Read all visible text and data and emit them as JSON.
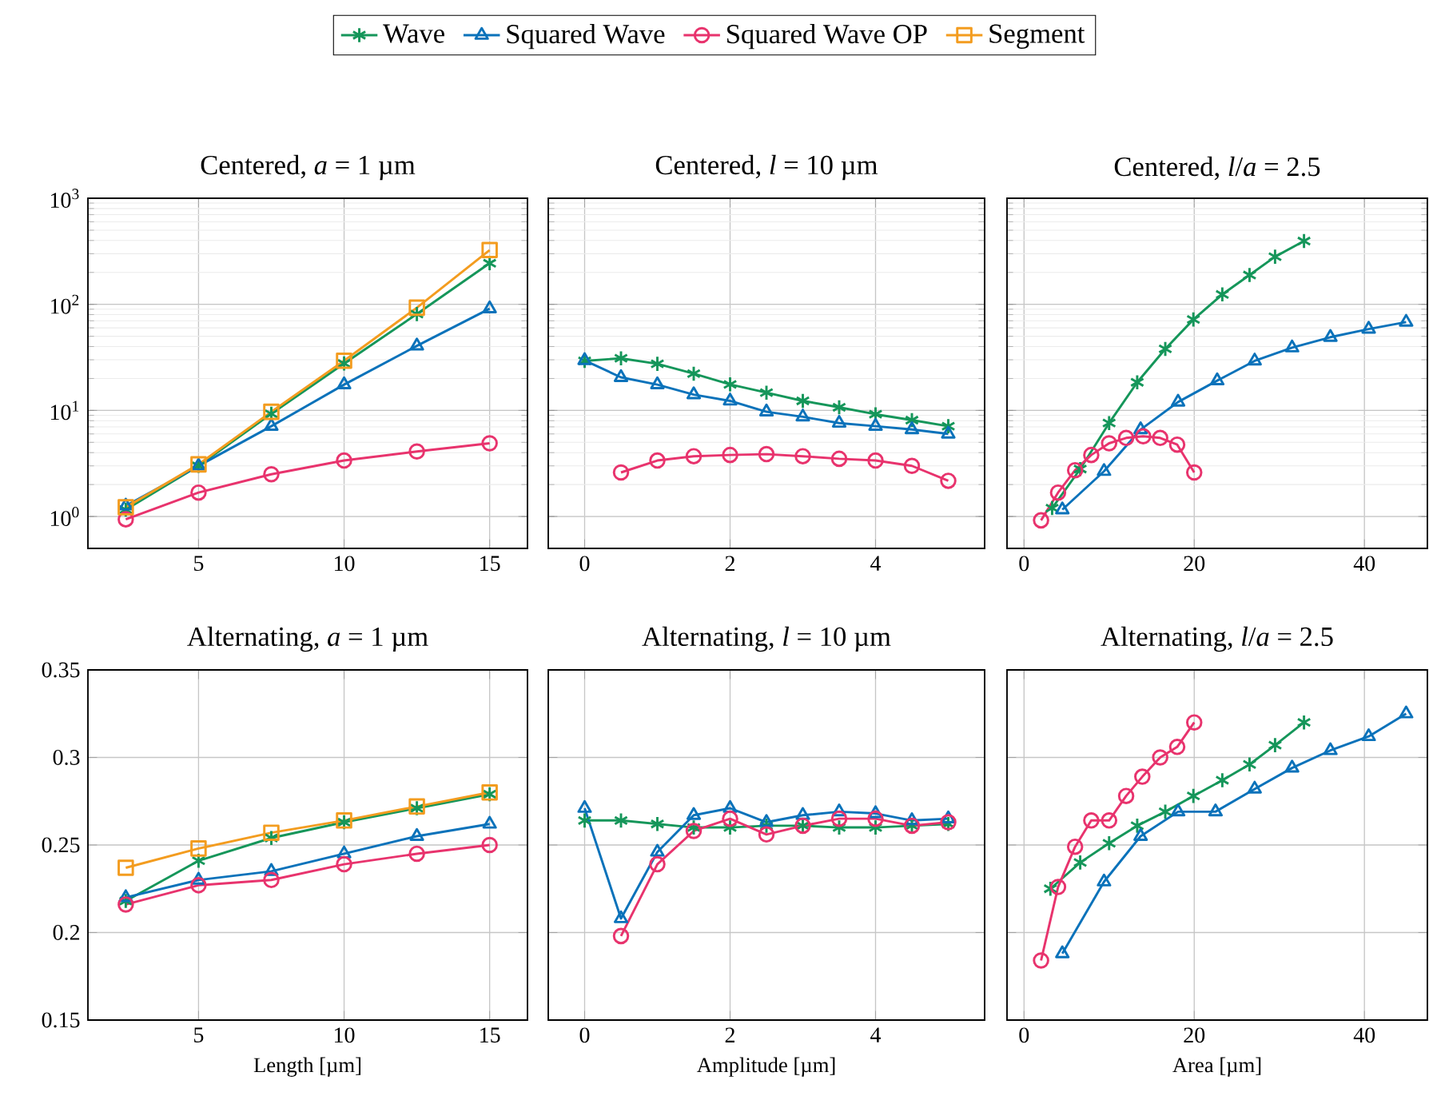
{
  "chart_data": [
    {
      "type": "line",
      "title": "Centered, *a* = 1 µm",
      "log": "y",
      "grid": true,
      "legend": "top",
      "xlim": [
        1.2,
        16.3
      ],
      "ylim": [
        0.5,
        1000
      ],
      "xticks": [
        5,
        10,
        15
      ],
      "yticks": [
        {
          "value": 1,
          "label": "10$^{0}$"
        },
        {
          "value": 10,
          "label": "10$^{1}$"
        },
        {
          "value": 100,
          "label": "10$^{2}$"
        },
        {
          "value": 1000,
          "label": "10$^{3}$"
        }
      ],
      "series": [
        {
          "name": "Wave",
          "color": "#15965a",
          "marker": "cross",
          "x": [
            2.5,
            5,
            7.5,
            10,
            12.5,
            15
          ],
          "values": [
            1.16,
            3.0,
            9.3,
            27.7,
            81,
            244
          ]
        },
        {
          "name": "Squared Wave",
          "color": "#0a72ba",
          "marker": "triangle",
          "x": [
            2.5,
            5,
            7.5,
            10,
            12.5,
            15
          ],
          "values": [
            1.26,
            3.0,
            7.1,
            17.5,
            40.6,
            91
          ]
        },
        {
          "name": "Squared Wave OP",
          "color": "#e8336d",
          "marker": "circle",
          "x": [
            2.5,
            5,
            7.5,
            10,
            12.5,
            15
          ],
          "values": [
            0.94,
            1.68,
            2.5,
            3.37,
            4.1,
            4.9
          ]
        },
        {
          "name": "Segment",
          "color": "#f39c1f",
          "marker": "square",
          "x": [
            2.5,
            5,
            7.5,
            10,
            12.5,
            15
          ],
          "values": [
            1.22,
            3.1,
            9.7,
            29.4,
            93,
            325
          ]
        }
      ]
    },
    {
      "type": "line",
      "title": "Centered, *l* = 10 µm",
      "log": "y",
      "grid": true,
      "tick_labels": "x",
      "xlim": [
        -0.5,
        5.5
      ],
      "ylim": [
        0.5,
        1000
      ],
      "xticks": [
        0,
        2,
        4
      ],
      "yticks": [
        {
          "value": 1,
          "label": null
        },
        {
          "value": 10,
          "label": null
        },
        {
          "value": 100,
          "label": null
        },
        {
          "value": 1000,
          "label": null
        }
      ],
      "series": [
        {
          "color": "#15965a",
          "marker": "cross",
          "x": [
            0,
            0.5,
            1,
            1.5,
            2,
            2.5,
            3,
            3.5,
            4,
            4.5,
            5
          ],
          "values": [
            29.3,
            31,
            27.5,
            22.2,
            17.6,
            14.7,
            12.3,
            10.7,
            9.2,
            8.1,
            7.1
          ]
        },
        {
          "color": "#0a72ba",
          "marker": "triangle",
          "x": [
            0,
            0.5,
            1,
            1.5,
            2,
            2.5,
            3,
            3.5,
            4,
            4.5,
            5
          ],
          "values": [
            29.6,
            20.5,
            17.5,
            14.1,
            12.3,
            9.7,
            8.7,
            7.6,
            7.1,
            6.6,
            6.0
          ]
        },
        {
          "color": "#e8336d",
          "marker": "circle",
          "x": [
            0.5,
            1,
            1.5,
            2,
            2.5,
            3,
            3.5,
            4,
            4.5,
            5
          ],
          "values": [
            2.6,
            3.37,
            3.7,
            3.8,
            3.87,
            3.7,
            3.5,
            3.37,
            3.0,
            2.17
          ]
        }
      ]
    },
    {
      "type": "line",
      "title": "Centered, *l*/*a* = 2.5",
      "log": "y",
      "grid": true,
      "tick_labels": "x",
      "xlim": [
        -2,
        47.4
      ],
      "ylim": [
        0.5,
        1000
      ],
      "xticks": [
        0,
        20,
        40
      ],
      "yticks": [
        {
          "value": 1,
          "label": null
        },
        {
          "value": 10,
          "label": null
        },
        {
          "value": 100,
          "label": null
        },
        {
          "value": 1000,
          "label": null
        }
      ],
      "series": [
        {
          "color": "#15965a",
          "marker": "cross",
          "x": [
            3.3,
            6.6,
            10,
            13.3,
            16.6,
            19.9,
            23.3,
            26.5,
            29.5,
            32.9
          ],
          "values": [
            1.2,
            2.8,
            7.6,
            18.4,
            38,
            72,
            124,
            189,
            281,
            395
          ]
        },
        {
          "color": "#0a72ba",
          "marker": "triangle",
          "x": [
            4.5,
            9.4,
            13.7,
            18.1,
            22.7,
            27.1,
            31.5,
            36,
            40.5,
            44.9
          ],
          "values": [
            1.16,
            2.67,
            6.6,
            12.0,
            19.1,
            29.3,
            39,
            49,
            58.5,
            68
          ]
        },
        {
          "color": "#e8336d",
          "marker": "circle",
          "x": [
            2,
            4,
            6,
            7.9,
            10,
            12,
            14,
            16,
            18,
            20
          ],
          "values": [
            0.92,
            1.68,
            2.73,
            3.8,
            4.9,
            5.5,
            5.7,
            5.5,
            4.76,
            2.6
          ]
        }
      ]
    },
    {
      "type": "line",
      "title": "Alternating, *a* = 1 µm",
      "xlabel": "Length [µm]",
      "grid": true,
      "xlim": [
        1.2,
        16.3
      ],
      "ylim": [
        0.15,
        0.35
      ],
      "xticks": [
        5,
        10,
        15
      ],
      "yticks": [
        0.15,
        0.2,
        0.25,
        0.3,
        0.35
      ],
      "series": [
        {
          "color": "#15965a",
          "marker": "cross",
          "x": [
            2.5,
            5,
            7.5,
            10,
            12.5,
            15
          ],
          "values": [
            0.218,
            0.241,
            0.254,
            0.263,
            0.271,
            0.279
          ]
        },
        {
          "color": "#0a72ba",
          "marker": "triangle",
          "x": [
            2.5,
            5,
            7.5,
            10,
            12.5,
            15
          ],
          "values": [
            0.22,
            0.23,
            0.235,
            0.245,
            0.255,
            0.262
          ]
        },
        {
          "color": "#e8336d",
          "marker": "circle",
          "x": [
            2.5,
            5,
            7.5,
            10,
            12.5,
            15
          ],
          "values": [
            0.216,
            0.227,
            0.23,
            0.239,
            0.245,
            0.25
          ]
        },
        {
          "color": "#f39c1f",
          "marker": "square",
          "x": [
            2.5,
            5,
            7.5,
            10,
            12.5,
            15
          ],
          "values": [
            0.237,
            0.248,
            0.257,
            0.264,
            0.272,
            0.28
          ]
        }
      ]
    },
    {
      "type": "line",
      "title": "Alternating, *l* = 10 µm",
      "xlabel": "Amplitude [µm]",
      "grid": true,
      "tick_labels": "x",
      "xlim": [
        -0.5,
        5.5
      ],
      "ylim": [
        0.15,
        0.35
      ],
      "xticks": [
        0,
        2,
        4
      ],
      "yticks": [
        0.15,
        0.2,
        0.25,
        0.3,
        0.35
      ],
      "series": [
        {
          "color": "#15965a",
          "marker": "cross",
          "x": [
            0,
            0.5,
            1,
            1.5,
            2,
            2.5,
            3,
            3.5,
            4,
            4.5,
            5
          ],
          "values": [
            0.264,
            0.264,
            0.262,
            0.26,
            0.26,
            0.261,
            0.261,
            0.26,
            0.26,
            0.261,
            0.262
          ]
        },
        {
          "color": "#0a72ba",
          "marker": "triangle",
          "x": [
            0,
            0.5,
            1,
            1.5,
            2,
            2.5,
            3,
            3.5,
            4,
            4.5,
            5
          ],
          "values": [
            0.271,
            0.208,
            0.246,
            0.267,
            0.271,
            0.263,
            0.267,
            0.269,
            0.268,
            0.264,
            0.265
          ]
        },
        {
          "color": "#e8336d",
          "marker": "circle",
          "x": [
            0.5,
            1,
            1.5,
            2,
            2.5,
            3,
            3.5,
            4,
            4.5,
            5
          ],
          "values": [
            0.198,
            0.239,
            0.258,
            0.265,
            0.256,
            0.261,
            0.265,
            0.265,
            0.261,
            0.263
          ]
        }
      ]
    },
    {
      "type": "line",
      "title": "Alternating, *l*/*a* = 2.5",
      "xlabel": "Area [µm]",
      "grid": true,
      "tick_labels": "x",
      "xlim": [
        -2,
        47.4
      ],
      "ylim": [
        0.15,
        0.35
      ],
      "xticks": [
        0,
        20,
        40
      ],
      "yticks": [
        0.15,
        0.2,
        0.25,
        0.3,
        0.35
      ],
      "series": [
        {
          "color": "#15965a",
          "marker": "cross",
          "x": [
            3.1,
            6.6,
            10,
            13.3,
            16.6,
            19.9,
            23.3,
            26.5,
            29.5,
            32.9
          ],
          "values": [
            0.225,
            0.24,
            0.251,
            0.261,
            0.269,
            0.278,
            0.287,
            0.296,
            0.307,
            0.32
          ]
        },
        {
          "color": "#0a72ba",
          "marker": "triangle",
          "x": [
            4.5,
            9.4,
            13.7,
            18.1,
            22.5,
            27.1,
            31.5,
            36,
            40.5,
            44.9
          ],
          "values": [
            0.188,
            0.229,
            0.255,
            0.269,
            0.269,
            0.282,
            0.294,
            0.304,
            0.312,
            0.325
          ]
        },
        {
          "color": "#e8336d",
          "marker": "circle",
          "x": [
            2,
            4,
            6,
            7.9,
            10,
            12,
            13.9,
            16,
            18,
            20
          ],
          "values": [
            0.184,
            0.226,
            0.249,
            0.264,
            0.264,
            0.278,
            0.289,
            0.3,
            0.306,
            0.32
          ]
        }
      ]
    }
  ]
}
